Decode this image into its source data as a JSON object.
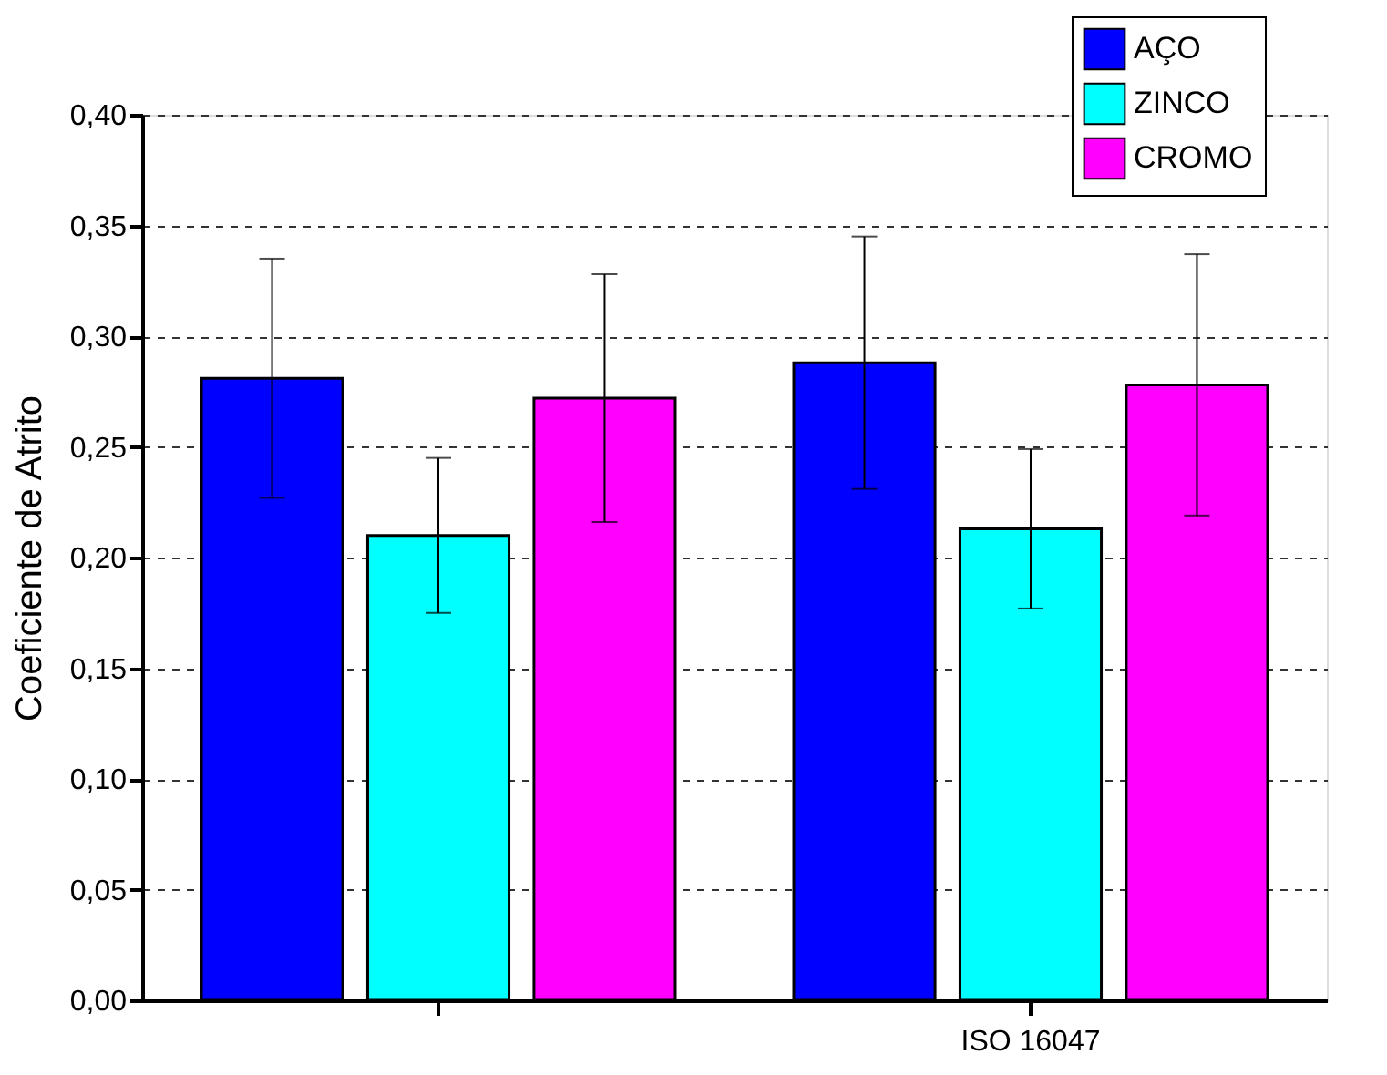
{
  "chart_data": {
    "type": "bar",
    "ylabel": "Coeficiente de Atrito",
    "categories": [
      null,
      "ISO 16047"
    ],
    "series": [
      {
        "name": "AÇO",
        "color": "#0000ff",
        "values": [
          0.281,
          0.288
        ],
        "errors": [
          [
            0.227,
            0.335
          ],
          [
            0.231,
            0.345
          ]
        ]
      },
      {
        "name": "ZINCO",
        "color": "#00ffff",
        "values": [
          0.21,
          0.213
        ],
        "errors": [
          [
            0.175,
            0.245
          ],
          [
            0.177,
            0.249
          ]
        ]
      },
      {
        "name": "CROMO",
        "color": "#ff00ff",
        "values": [
          0.272,
          0.278
        ],
        "errors": [
          [
            0.216,
            0.328
          ],
          [
            0.219,
            0.337
          ]
        ]
      }
    ],
    "ylim": [
      0,
      0.4
    ],
    "yticks": [
      {
        "value": 0,
        "label": "0,00"
      },
      {
        "value": 0.05,
        "label": "0,05"
      },
      {
        "value": 0.1,
        "label": "0,10"
      },
      {
        "value": 0.15,
        "label": "0,15"
      },
      {
        "value": 0.2,
        "label": "0,20"
      },
      {
        "value": 0.25,
        "label": "0,25"
      },
      {
        "value": 0.3,
        "label": "0,30"
      },
      {
        "value": 0.35,
        "label": "0,35"
      },
      {
        "value": 0.4,
        "label": "0,40"
      }
    ],
    "grid": "y",
    "legend": "top right"
  }
}
